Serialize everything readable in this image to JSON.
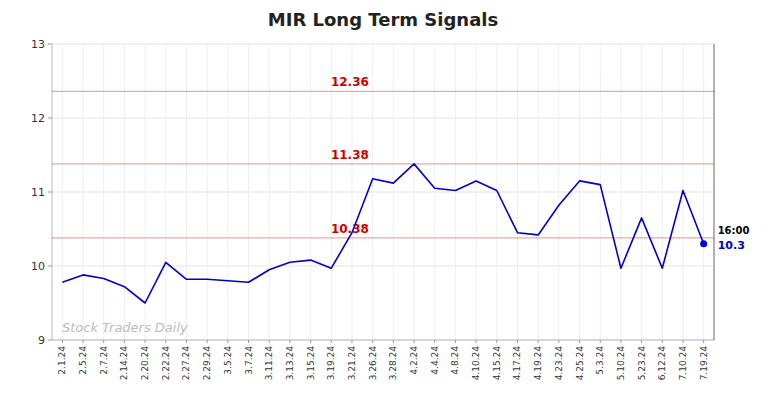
{
  "chart_data": {
    "type": "line",
    "title": "MIR Long Term Signals",
    "categories": [
      "2.1.24",
      "2.5.24",
      "2.7.24",
      "2.14.24",
      "2.20.24",
      "2.22.24",
      "2.27.24",
      "2.29.24",
      "3.5.24",
      "3.7.24",
      "3.11.24",
      "3.13.24",
      "3.15.24",
      "3.19.24",
      "3.21.24",
      "3.26.24",
      "3.28.24",
      "4.2.24",
      "4.4.24",
      "4.8.24",
      "4.10.24",
      "4.15.24",
      "4.17.24",
      "4.19.24",
      "4.23.24",
      "4.25.24",
      "5.3.24",
      "5.10.24",
      "5.23.24",
      "6.12.24",
      "7.10.24",
      "7.19.24"
    ],
    "values": [
      9.78,
      9.88,
      9.83,
      9.72,
      9.5,
      10.05,
      9.82,
      9.82,
      9.8,
      9.78,
      9.95,
      10.05,
      10.08,
      9.97,
      10.45,
      11.18,
      11.12,
      11.38,
      11.05,
      11.02,
      11.15,
      11.02,
      10.45,
      10.42,
      10.82,
      11.15,
      11.1,
      9.97,
      10.65,
      9.97,
      11.02,
      10.3
    ],
    "color": "#0000cc",
    "reference_lines": [
      {
        "value": 12.36,
        "label": "12.36",
        "color": "#cc0000"
      },
      {
        "value": 11.38,
        "label": "11.38",
        "color": "#cc0000"
      },
      {
        "value": 10.38,
        "label": "10.38",
        "color": "#cc0000"
      }
    ],
    "watermark": "Stock Traders Daily",
    "end_labels": [
      "16:00",
      "10.3"
    ],
    "ylim": [
      9,
      13
    ],
    "yticks": [
      9,
      10,
      11,
      12,
      13
    ],
    "grid": true
  }
}
